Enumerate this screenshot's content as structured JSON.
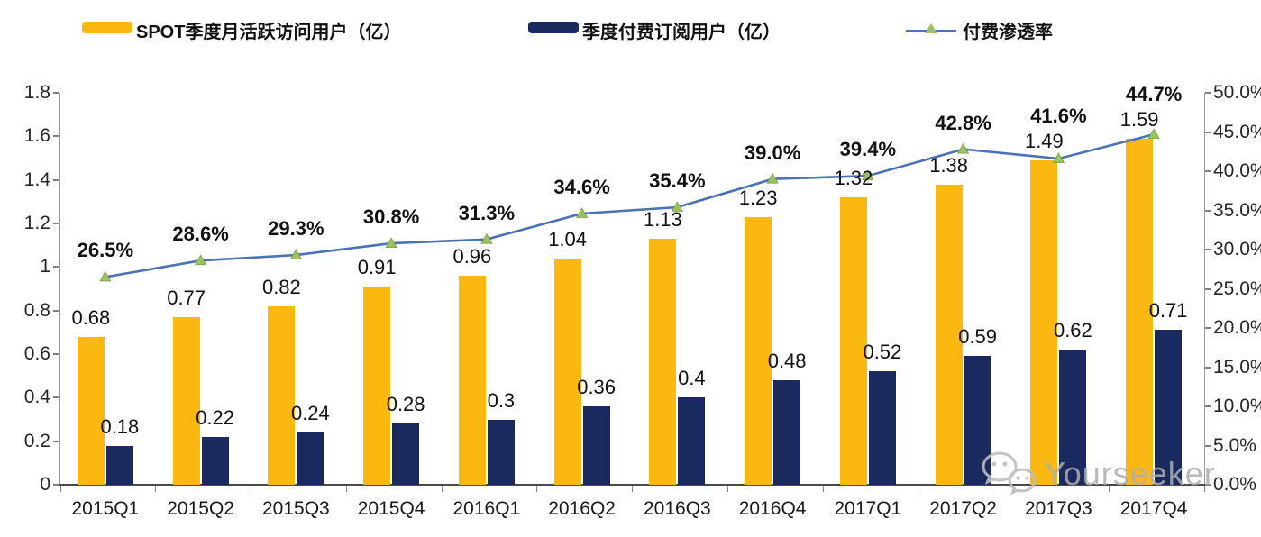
{
  "chart_data": {
    "type": "bar+line",
    "title": "",
    "categories": [
      "2015Q1",
      "2015Q2",
      "2015Q3",
      "2015Q4",
      "2016Q1",
      "2016Q2",
      "2016Q3",
      "2016Q4",
      "2017Q1",
      "2017Q2",
      "2017Q3",
      "2017Q4"
    ],
    "series": [
      {
        "name": "SPOT季度月活跃访问用户（亿）",
        "type": "bar",
        "axis": "left",
        "color": "#FBB811",
        "values": [
          0.68,
          0.77,
          0.82,
          0.91,
          0.96,
          1.04,
          1.13,
          1.23,
          1.32,
          1.38,
          1.49,
          1.59
        ],
        "labels": [
          "0.68",
          "0.77",
          "0.82",
          "0.91",
          "0.96",
          "1.04",
          "1.13",
          "1.23",
          "1.32",
          "1.38",
          "1.49",
          "1.59"
        ]
      },
      {
        "name": "季度付费订阅用户（亿）",
        "type": "bar",
        "axis": "left",
        "color": "#1B2A5E",
        "values": [
          0.18,
          0.22,
          0.24,
          0.28,
          0.3,
          0.36,
          0.4,
          0.48,
          0.52,
          0.59,
          0.62,
          0.71
        ],
        "labels": [
          "0.18",
          "0.22",
          "0.24",
          "0.28",
          "0.3",
          "0.36",
          "0.4",
          "0.48",
          "0.52",
          "0.59",
          "0.62",
          "0.71"
        ]
      },
      {
        "name": "付费渗透率",
        "type": "line",
        "axis": "right",
        "color": "#4A72B8",
        "marker": "triangle",
        "marker_color": "#9CC25E",
        "values_percent": [
          26.5,
          28.6,
          29.3,
          30.8,
          31.3,
          34.6,
          35.4,
          39.0,
          39.4,
          42.8,
          41.6,
          44.7
        ],
        "labels": [
          "26.5%",
          "28.6%",
          "29.3%",
          "30.8%",
          "31.3%",
          "34.6%",
          "35.4%",
          "39.0%",
          "39.4%",
          "42.8%",
          "41.6%",
          "44.7%"
        ]
      }
    ],
    "left_axis": {
      "min": 0,
      "max": 1.8,
      "step": 0.2,
      "tick_labels": [
        "0",
        "0.2",
        "0.4",
        "0.6",
        "0.8",
        "1",
        "1.2",
        "1.4",
        "1.6",
        "1.8"
      ]
    },
    "right_axis": {
      "min": 0,
      "max": 50,
      "step": 5,
      "tick_labels": [
        "0.0%",
        "5.0%",
        "10.0%",
        "15.0%",
        "20.0%",
        "25.0%",
        "30.0%",
        "35.0%",
        "40.0%",
        "45.0%",
        "50.0%"
      ]
    },
    "grid": false,
    "legend_position": "top"
  },
  "watermark": {
    "text": "Yourseeker",
    "icon": "wechat-icon"
  }
}
